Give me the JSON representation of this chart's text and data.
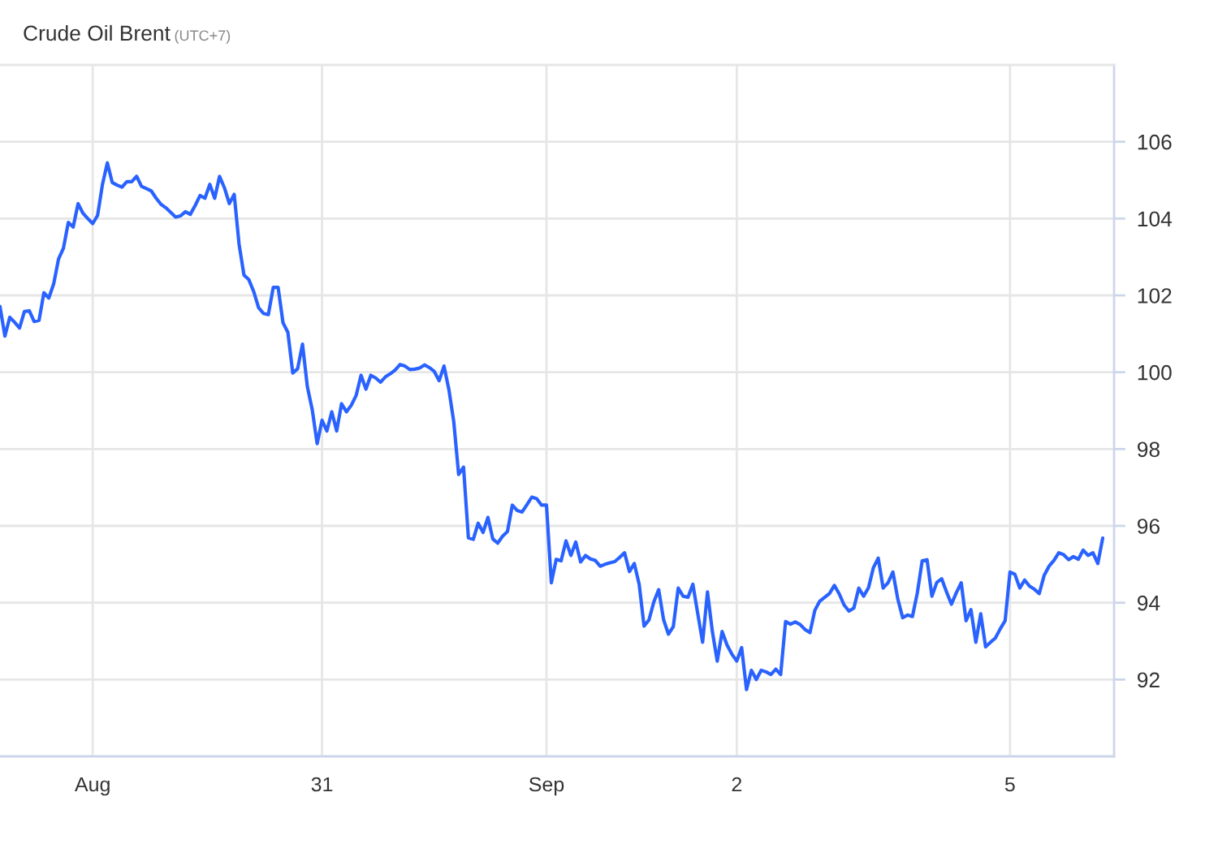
{
  "chart_data": {
    "type": "line",
    "title": "Crude Oil Brent",
    "subtitle": "(UTC+7)",
    "categories": [
      null,
      null,
      null,
      null,
      null,
      null,
      null,
      null,
      null,
      null,
      null,
      null,
      null,
      null,
      null,
      null,
      null,
      null,
      null,
      "Aug",
      null,
      null,
      null,
      null,
      null,
      null,
      null,
      null,
      null,
      null,
      null,
      null,
      null,
      null,
      null,
      null,
      null,
      null,
      null,
      null,
      null,
      null,
      null,
      null,
      null,
      null,
      null,
      null,
      null,
      null,
      null,
      null,
      null,
      null,
      null,
      null,
      null,
      null,
      null,
      null,
      null,
      null,
      null,
      null,
      null,
      null,
      "31",
      null,
      null,
      null,
      null,
      null,
      null,
      null,
      null,
      null,
      null,
      null,
      null,
      null,
      null,
      null,
      null,
      null,
      null,
      null,
      null,
      null,
      null,
      null,
      null,
      null,
      null,
      null,
      null,
      null,
      null,
      null,
      null,
      null,
      null,
      null,
      null,
      null,
      null,
      null,
      null,
      null,
      null,
      null,
      null,
      null,
      "Sep",
      null,
      null,
      null,
      null,
      null,
      null,
      null,
      null,
      null,
      null,
      null,
      null,
      null,
      null,
      null,
      null,
      null,
      null,
      null,
      null,
      null,
      null,
      null,
      null,
      null,
      null,
      null,
      null,
      null,
      null,
      null,
      null,
      null,
      null,
      null,
      null,
      null,
      null,
      "2",
      null,
      null,
      null,
      null,
      null,
      null,
      null,
      null,
      null,
      null,
      null,
      null,
      null,
      null,
      null,
      null,
      null,
      null,
      null,
      null,
      null,
      null,
      null,
      null,
      null,
      null,
      null,
      null,
      null,
      null,
      null,
      null,
      null,
      null,
      null,
      null,
      null,
      null,
      null,
      null,
      null,
      null,
      null,
      null,
      null,
      null,
      null,
      null,
      null,
      null,
      null,
      null,
      null,
      null,
      null,
      "5",
      null,
      null,
      null,
      null,
      null,
      null,
      null,
      null,
      null,
      null,
      null,
      null,
      null,
      null,
      null,
      null,
      null,
      null,
      null
    ],
    "series": [
      {
        "color": "#2962ff",
        "values": [
          101.71,
          100.94,
          101.43,
          101.3,
          101.15,
          101.58,
          101.6,
          101.32,
          101.35,
          102.07,
          101.93,
          102.3,
          102.95,
          103.23,
          103.9,
          103.78,
          104.39,
          104.14,
          104,
          103.87,
          104.08,
          104.89,
          105.45,
          104.94,
          104.87,
          104.82,
          104.96,
          104.96,
          105.1,
          104.84,
          104.78,
          104.72,
          104.53,
          104.37,
          104.28,
          104.16,
          104.04,
          104.07,
          104.18,
          104.11,
          104.34,
          104.6,
          104.53,
          104.89,
          104.53,
          105.1,
          104.8,
          104.39,
          104.63,
          103.33,
          102.53,
          102.41,
          102.1,
          101.68,
          101.53,
          101.5,
          102.21,
          102.21,
          101.29,
          101.04,
          99.98,
          100.09,
          100.73,
          99.62,
          99.02,
          98.14,
          98.75,
          98.47,
          98.97,
          98.47,
          99.18,
          98.97,
          99.14,
          99.4,
          99.92,
          99.56,
          99.92,
          99.85,
          99.74,
          99.88,
          99.96,
          100.06,
          100.2,
          100.16,
          100.07,
          100.08,
          100.11,
          100.19,
          100.12,
          100.02,
          99.78,
          100.16,
          99.55,
          98.71,
          97.34,
          97.53,
          95.69,
          95.65,
          96.07,
          95.83,
          96.22,
          95.66,
          95.55,
          95.73,
          95.85,
          96.54,
          96.4,
          96.36,
          96.55,
          96.75,
          96.71,
          96.54,
          96.54,
          94.52,
          95.13,
          95.09,
          95.61,
          95.23,
          95.58,
          95.06,
          95.23,
          95.14,
          95.1,
          94.95,
          95,
          95.04,
          95.07,
          95.18,
          95.3,
          94.81,
          95.02,
          94.48,
          93.39,
          93.55,
          94.02,
          94.34,
          93.56,
          93.18,
          93.38,
          94.38,
          94.17,
          94.14,
          94.48,
          93.72,
          92.97,
          94.28,
          93.25,
          92.48,
          93.25,
          92.9,
          92.66,
          92.48,
          92.83,
          91.74,
          92.24,
          92,
          92.24,
          92.2,
          92.13,
          92.27,
          92.13,
          93.51,
          93.44,
          93.5,
          93.43,
          93.3,
          93.22,
          93.8,
          94.04,
          94.14,
          94.24,
          94.45,
          94.23,
          93.94,
          93.78,
          93.86,
          94.38,
          94.17,
          94.39,
          94.91,
          95.16,
          94.38,
          94.52,
          94.8,
          94.1,
          93.61,
          93.68,
          93.64,
          94.25,
          95.09,
          95.12,
          94.17,
          94.53,
          94.62,
          94.28,
          93.96,
          94.26,
          94.52,
          93.53,
          93.82,
          92.97,
          93.71,
          92.85,
          92.97,
          93.08,
          93.32,
          93.53,
          94.8,
          94.74,
          94.38,
          94.59,
          94.43,
          94.35,
          94.24,
          94.71,
          94.95,
          95.1,
          95.3,
          95.25,
          95.12,
          95.2,
          95.13,
          95.37,
          95.23,
          95.3,
          95.02,
          95.68
        ]
      }
    ],
    "ylim": [
      90,
      108
    ],
    "yticks": [
      92,
      94,
      96,
      98,
      100,
      102,
      104,
      106
    ],
    "grid": true
  }
}
